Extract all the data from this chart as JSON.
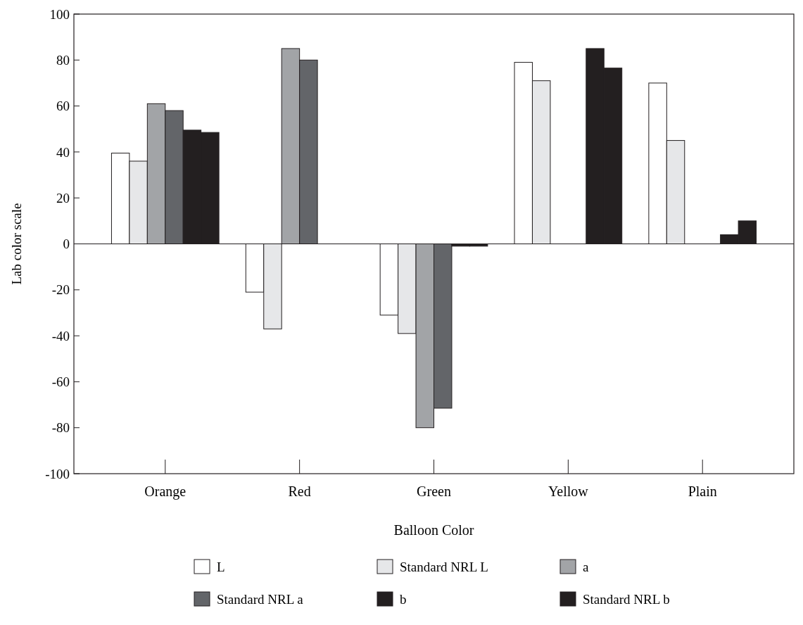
{
  "chart_data": {
    "type": "bar",
    "xlabel": "Balloon Color",
    "ylabel": "Lab color scale",
    "categories": [
      "Orange",
      "Red",
      "Green",
      "Yellow",
      "Plain"
    ],
    "ylim": [
      -100,
      100
    ],
    "yticks": [
      -100,
      -80,
      -60,
      -40,
      -20,
      0,
      20,
      40,
      60,
      80,
      100
    ],
    "legend": "bottom",
    "series": [
      {
        "name": "L",
        "color": "#ffffff",
        "values": [
          39.5,
          -21,
          -31,
          79,
          70
        ]
      },
      {
        "name": "Standard NRL L",
        "color": "#e6e7e9",
        "values": [
          36,
          -37,
          -39,
          71,
          45
        ]
      },
      {
        "name": "a",
        "color": "#a2a4a7",
        "values": [
          61,
          85,
          -80,
          null,
          null
        ]
      },
      {
        "name": "Standard NRL a",
        "color": "#636569",
        "values": [
          58,
          80,
          -71.5,
          null,
          null
        ]
      },
      {
        "name": "b",
        "color": "#231f20",
        "values": [
          49.5,
          null,
          -1,
          85,
          4
        ]
      },
      {
        "name": "Standard NRL b",
        "color": "#231f20",
        "values": [
          48.5,
          null,
          -1,
          76.5,
          10
        ]
      }
    ]
  }
}
